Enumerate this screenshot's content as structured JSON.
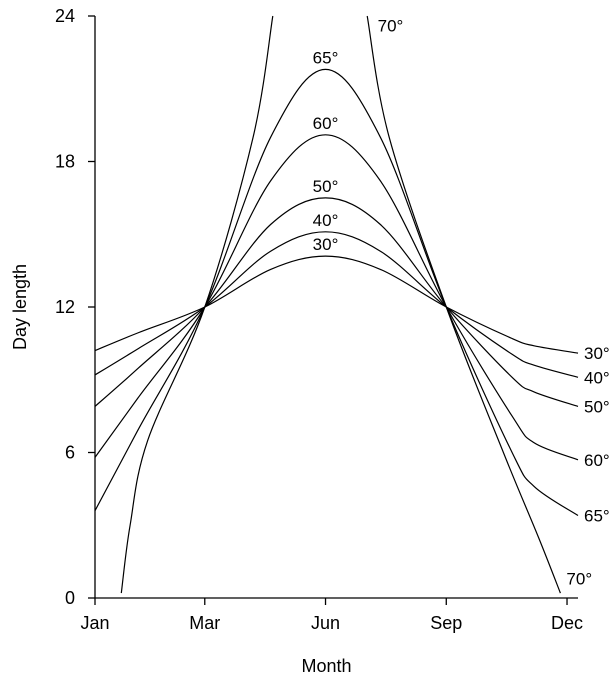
{
  "chart_data": {
    "type": "line",
    "title": "",
    "xlabel": "Month",
    "ylabel": "Day length",
    "ylim": [
      0,
      24
    ],
    "yticks": [
      0,
      6,
      12,
      18,
      24
    ],
    "xlim": [
      1,
      12
    ],
    "xticks": [
      {
        "x": 1,
        "label": "Jan"
      },
      {
        "x": 3.5,
        "label": "Mar"
      },
      {
        "x": 6.25,
        "label": "Jun"
      },
      {
        "x": 9,
        "label": "Sep"
      },
      {
        "x": 11.75,
        "label": "Dec"
      }
    ],
    "grid": false,
    "series": [
      {
        "name": "30°",
        "points": [
          [
            1,
            10.2
          ],
          [
            2,
            10.95
          ],
          [
            3.5,
            12
          ],
          [
            5,
            13.55
          ],
          [
            6.25,
            14.1
          ],
          [
            7.5,
            13.55
          ],
          [
            9,
            12
          ],
          [
            10.5,
            10.7
          ],
          [
            11,
            10.4
          ],
          [
            12,
            10.1
          ]
        ]
      },
      {
        "name": "40°",
        "points": [
          [
            1,
            9.2
          ],
          [
            2,
            10.3
          ],
          [
            3.5,
            12
          ],
          [
            5,
            14.3
          ],
          [
            6.25,
            15.1
          ],
          [
            7.5,
            14.3
          ],
          [
            9,
            12
          ],
          [
            10.5,
            10.05
          ],
          [
            11,
            9.6
          ],
          [
            12,
            9.1
          ]
        ]
      },
      {
        "name": "50°",
        "points": [
          [
            1,
            7.9
          ],
          [
            2,
            9.5
          ],
          [
            3.5,
            12
          ],
          [
            5,
            15.4
          ],
          [
            6.25,
            16.5
          ],
          [
            7.5,
            15.4
          ],
          [
            9,
            12
          ],
          [
            10.5,
            9.1
          ],
          [
            11,
            8.5
          ],
          [
            12,
            7.9
          ]
        ]
      },
      {
        "name": "60°",
        "points": [
          [
            1,
            5.8
          ],
          [
            2,
            8.3
          ],
          [
            3.5,
            12
          ],
          [
            5,
            17.2
          ],
          [
            6.25,
            19.1
          ],
          [
            7.5,
            17.2
          ],
          [
            9,
            12
          ],
          [
            10.5,
            7.5
          ],
          [
            11,
            6.4
          ],
          [
            12,
            5.7
          ]
        ]
      },
      {
        "name": "65°",
        "points": [
          [
            1,
            3.6
          ],
          [
            2,
            7
          ],
          [
            3.5,
            12
          ],
          [
            5,
            19
          ],
          [
            6.25,
            21.8
          ],
          [
            7.5,
            19
          ],
          [
            9,
            12
          ],
          [
            10.5,
            6
          ],
          [
            11,
            4.6
          ],
          [
            12,
            3.4
          ]
        ]
      },
      {
        "name": "70°",
        "points": [
          [
            1.6,
            0.2
          ],
          [
            1.8,
            3
          ],
          [
            2.2,
            6.5
          ],
          [
            3.5,
            12
          ],
          [
            4.6,
            19
          ],
          [
            5.05,
            24
          ],
          [
            7.2,
            24
          ],
          [
            7.7,
            19
          ],
          [
            9,
            12
          ],
          [
            10.3,
            6
          ],
          [
            11.1,
            2.5
          ],
          [
            11.6,
            0.2
          ]
        ]
      }
    ],
    "curve_labels": [
      {
        "text": "65°",
        "x": 6.25,
        "y": 21.8,
        "pos": "above"
      },
      {
        "text": "60°",
        "x": 6.25,
        "y": 19.1,
        "pos": "above"
      },
      {
        "text": "50°",
        "x": 6.25,
        "y": 16.5,
        "pos": "above"
      },
      {
        "text": "40°",
        "x": 6.25,
        "y": 15.1,
        "pos": "above"
      },
      {
        "text": "30°",
        "x": 6.25,
        "y": 14.1,
        "pos": "above"
      },
      {
        "text": "70°",
        "x": 7.3,
        "y": 23.6,
        "pos": "right"
      },
      {
        "text": "30°",
        "x": 12,
        "y": 10.1,
        "pos": "right"
      },
      {
        "text": "40°",
        "x": 12,
        "y": 9.1,
        "pos": "right"
      },
      {
        "text": "50°",
        "x": 12,
        "y": 7.9,
        "pos": "right"
      },
      {
        "text": "60°",
        "x": 12,
        "y": 5.7,
        "pos": "right"
      },
      {
        "text": "65°",
        "x": 12,
        "y": 3.4,
        "pos": "right"
      },
      {
        "text": "70°",
        "x": 11.6,
        "y": 0.8,
        "pos": "right"
      }
    ]
  }
}
